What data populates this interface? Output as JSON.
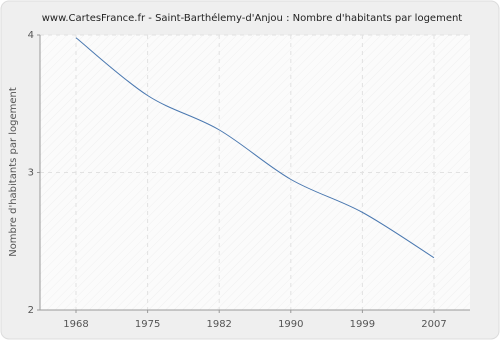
{
  "chart_data": {
    "type": "line",
    "title": "www.CartesFrance.fr - Saint-Barthélemy-d'Anjou : Nombre d'habitants par logement",
    "y_label": "Nombre d'habitants par logement",
    "categories": [
      "1968",
      "1975",
      "1982",
      "1990",
      "1999",
      "2007"
    ],
    "values": [
      3.98,
      3.56,
      3.31,
      2.95,
      2.71,
      2.38
    ],
    "color": "#4a78b0",
    "ylim": [
      2,
      4
    ],
    "yticks": [
      2,
      3,
      4
    ],
    "grid": true
  }
}
